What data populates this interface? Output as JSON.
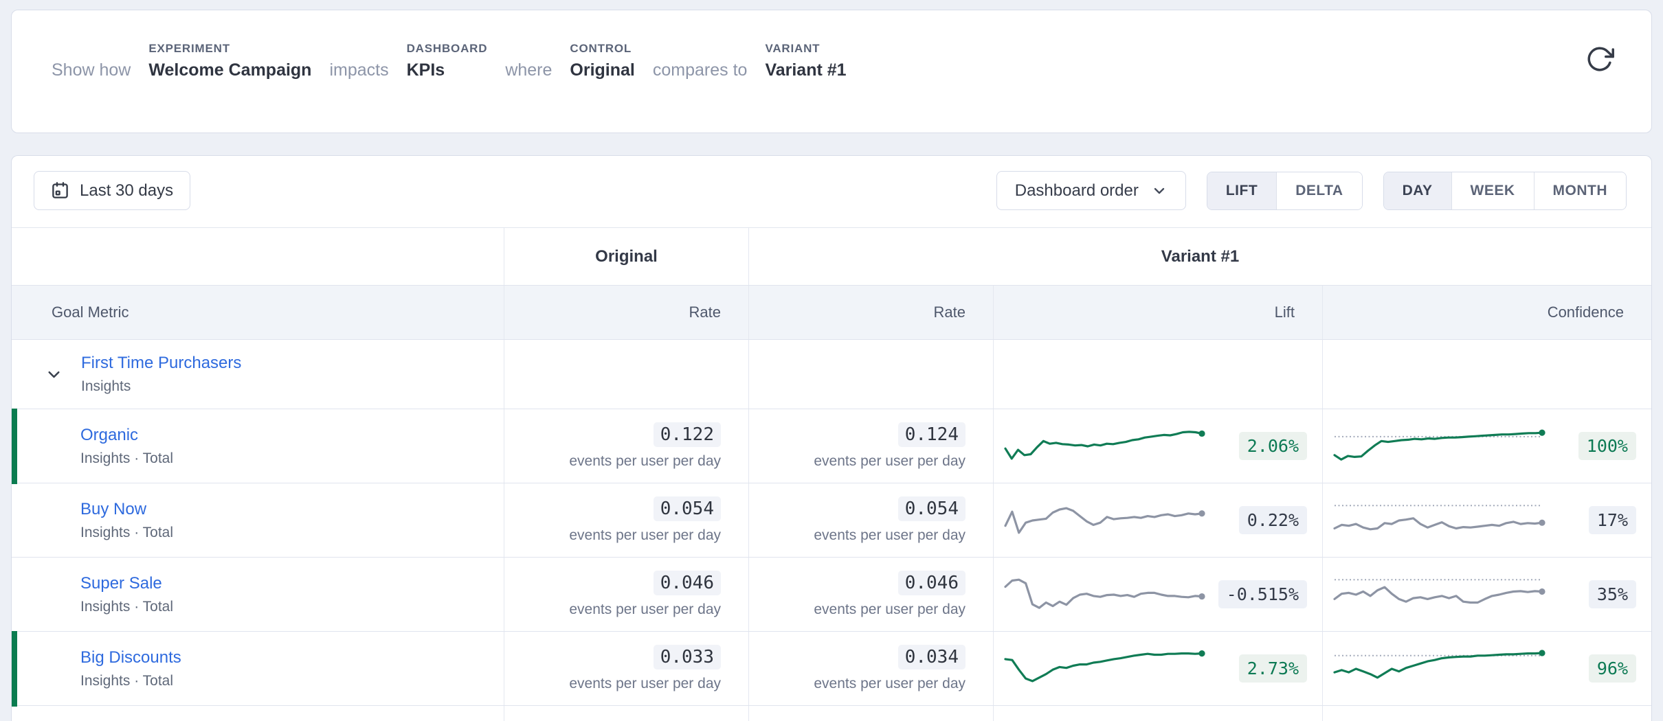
{
  "header": {
    "intro": "Show how",
    "experiment_label": "EXPERIMENT",
    "experiment": "Welcome Campaign",
    "impacts": "impacts",
    "dashboard_label": "DASHBOARD",
    "dashboard": "KPIs",
    "where": "where",
    "control_label": "CONTROL",
    "control": "Original",
    "compares": "compares to",
    "variant_label": "VARIANT",
    "variant": "Variant #1"
  },
  "toolbar": {
    "date_range": "Last 30 days",
    "order": "Dashboard order",
    "mode_options": [
      "LIFT",
      "DELTA"
    ],
    "mode_selected": "LIFT",
    "granularity_options": [
      "DAY",
      "WEEK",
      "MONTH"
    ],
    "granularity_selected": "DAY"
  },
  "table": {
    "group": {
      "control": "Original",
      "variant": "Variant #1"
    },
    "columns": {
      "goal": "Goal Metric",
      "control_rate": "Rate",
      "variant_rate": "Rate",
      "lift": "Lift",
      "confidence": "Confidence"
    },
    "parent": {
      "name": "First Time Purchasers",
      "source": "Insights"
    },
    "rows": [
      {
        "name": "Organic",
        "source": "Insights · Total",
        "control_rate": "0.122",
        "variant_rate": "0.124",
        "unit": "events per user per day",
        "lift": "2.06%",
        "confidence": "100%",
        "positive": true
      },
      {
        "name": "Buy Now",
        "source": "Insights · Total",
        "control_rate": "0.054",
        "variant_rate": "0.054",
        "unit": "events per user per day",
        "lift": "0.22%",
        "confidence": "17%",
        "positive": false
      },
      {
        "name": "Super Sale",
        "source": "Insights · Total",
        "control_rate": "0.046",
        "variant_rate": "0.046",
        "unit": "events per user per day",
        "lift": "-0.515%",
        "confidence": "35%",
        "positive": false
      },
      {
        "name": "Big Discounts",
        "source": "Insights · Total",
        "control_rate": "0.033",
        "variant_rate": "0.034",
        "unit": "events per user per day",
        "lift": "2.73%",
        "confidence": "96%",
        "positive": true
      }
    ]
  },
  "chart_data": {
    "type": "line",
    "x_label": "last 30 days (daily points, unlabeled axes)",
    "y_units": {
      "lift": "% lift over control",
      "confidence": "% confidence"
    },
    "note": "values are normalized sparkline heights, 0=top 100=bottom of plot area",
    "series": [
      {
        "metric": "Organic",
        "lift": {
          "color": "green",
          "values": [
            55,
            78,
            58,
            70,
            68,
            52,
            38,
            44,
            42,
            45,
            46,
            48,
            47,
            50,
            46,
            48,
            44,
            45,
            42,
            40,
            36,
            34,
            30,
            28,
            26,
            24,
            25,
            22,
            18,
            17,
            18,
            21
          ]
        },
        "confidence": {
          "color": "green",
          "ref_y": 28,
          "values": [
            70,
            80,
            72,
            74,
            73,
            60,
            48,
            38,
            40,
            38,
            36,
            35,
            33,
            34,
            32,
            33,
            31,
            30,
            30,
            29,
            28,
            27,
            26,
            25,
            24,
            23,
            23,
            22,
            21,
            20,
            20,
            19
          ]
        }
      },
      {
        "metric": "Buy Now",
        "lift": {
          "color": "gray",
          "values": [
            62,
            30,
            78,
            55,
            50,
            48,
            46,
            32,
            25,
            22,
            28,
            40,
            52,
            60,
            55,
            42,
            47,
            45,
            44,
            42,
            44,
            40,
            42,
            38,
            36,
            40,
            38,
            34,
            36,
            34
          ]
        },
        "confidence": {
          "color": "gray",
          "ref_y": 16,
          "values": [
            68,
            60,
            62,
            58,
            66,
            70,
            68,
            56,
            58,
            50,
            48,
            45,
            58,
            66,
            60,
            54,
            63,
            68,
            65,
            66,
            64,
            62,
            60,
            62,
            56,
            53,
            58,
            56,
            57,
            55
          ]
        }
      },
      {
        "metric": "Super Sale",
        "lift": {
          "color": "gray",
          "values": [
            32,
            18,
            16,
            24,
            72,
            80,
            68,
            76,
            66,
            73,
            58,
            50,
            48,
            53,
            55,
            51,
            50,
            53,
            51,
            55,
            48,
            46,
            46,
            50,
            53,
            53,
            55,
            56,
            53,
            54
          ]
        },
        "confidence": {
          "color": "gray",
          "ref_y": 16,
          "values": [
            60,
            48,
            46,
            50,
            43,
            53,
            40,
            33,
            48,
            60,
            66,
            58,
            56,
            60,
            56,
            53,
            58,
            53,
            66,
            68,
            68,
            60,
            53,
            50,
            46,
            43,
            42,
            44,
            42,
            43
          ]
        }
      },
      {
        "metric": "Big Discounts",
        "lift": {
          "color": "green",
          "values": [
            28,
            30,
            52,
            72,
            78,
            70,
            62,
            52,
            46,
            48,
            43,
            40,
            40,
            36,
            34,
            31,
            28,
            26,
            23,
            20,
            18,
            16,
            18,
            18,
            16,
            16,
            15,
            15,
            16,
            15
          ]
        },
        "confidence": {
          "color": "green",
          "ref_y": 20,
          "values": [
            58,
            53,
            58,
            50,
            56,
            62,
            70,
            60,
            50,
            56,
            48,
            43,
            38,
            33,
            30,
            26,
            24,
            23,
            22,
            22,
            20,
            20,
            19,
            18,
            17,
            17,
            16,
            15,
            15,
            14
          ]
        }
      }
    ]
  }
}
